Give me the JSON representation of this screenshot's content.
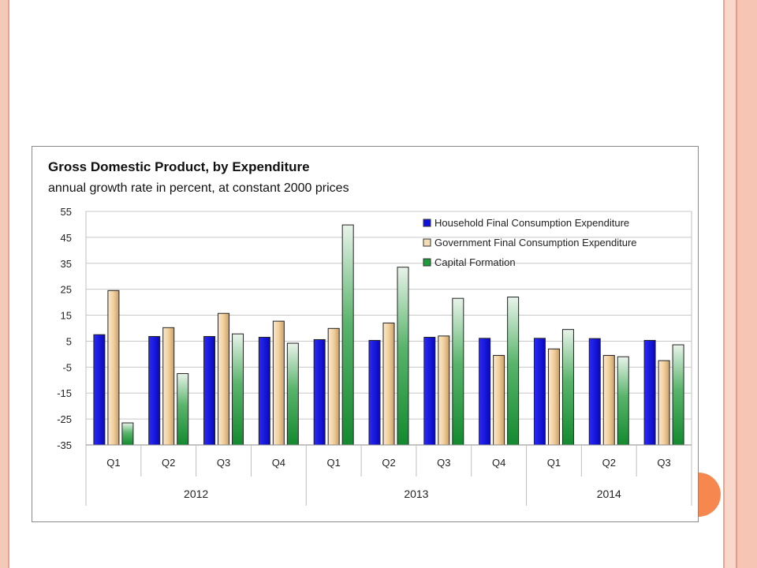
{
  "decor": {
    "accent": "#f6874f",
    "stripe": "#f5c9b8"
  },
  "chart_data": {
    "type": "bar",
    "title": "Gross Domestic Product, by Expenditure",
    "subtitle": "annual growth rate in percent, at constant 2000 prices",
    "ylim": [
      -35,
      55
    ],
    "yticks": [
      55,
      45,
      35,
      25,
      15,
      5,
      -5,
      -15,
      -25,
      -35
    ],
    "grid": true,
    "legend_position": "top-right",
    "categories": [
      "Q1",
      "Q2",
      "Q3",
      "Q4",
      "Q1",
      "Q2",
      "Q3",
      "Q4",
      "Q1",
      "Q2",
      "Q3"
    ],
    "year_groups": [
      {
        "label": "2012",
        "quarters": 4
      },
      {
        "label": "2013",
        "quarters": 4
      },
      {
        "label": "2014",
        "quarters": 3
      }
    ],
    "series": [
      {
        "name": "Household Final Consumption Expenditure",
        "color": "#1010e0",
        "values": [
          7.5,
          6.8,
          6.8,
          6.5,
          5.6,
          5.3,
          6.5,
          6.1,
          6.1,
          6.0,
          5.3
        ]
      },
      {
        "name": "Government Final Consumption Expenditure",
        "color": "#f2d4a6",
        "values": [
          24.5,
          10.2,
          15.7,
          12.7,
          9.9,
          12.0,
          7.0,
          -0.5,
          2.0,
          -0.5,
          -2.5
        ]
      },
      {
        "name": "Capital Formation",
        "color": "#1f9a3a",
        "values": [
          -26.5,
          -7.5,
          7.8,
          4.2,
          49.8,
          33.5,
          21.5,
          22.0,
          9.5,
          -1.0,
          3.6
        ]
      }
    ]
  }
}
